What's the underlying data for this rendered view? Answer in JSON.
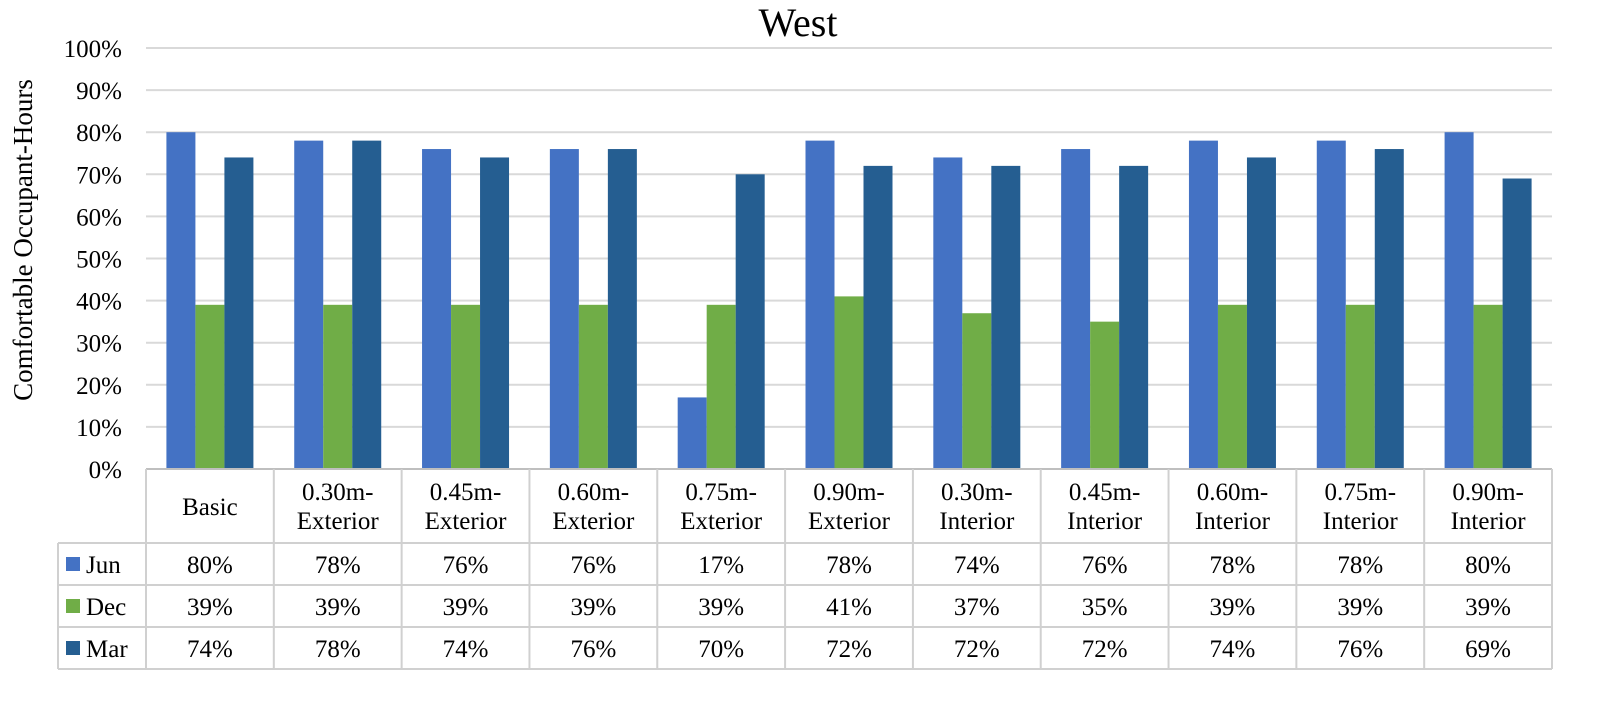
{
  "chart_data": {
    "type": "bar",
    "title": "West",
    "xlabel": "",
    "ylabel": "Comfortable Occupant-Hours",
    "ylim": [
      0,
      100
    ],
    "y_ticks": [
      "0%",
      "10%",
      "20%",
      "30%",
      "40%",
      "50%",
      "60%",
      "70%",
      "80%",
      "90%",
      "100%"
    ],
    "grid": true,
    "legend": "data-table",
    "categories": [
      [
        "Basic"
      ],
      [
        "0.30m-",
        "Exterior"
      ],
      [
        "0.45m-",
        "Exterior"
      ],
      [
        "0.60m-",
        "Exterior"
      ],
      [
        "0.75m-",
        "Exterior"
      ],
      [
        "0.90m-",
        "Exterior"
      ],
      [
        "0.30m-",
        "Interior"
      ],
      [
        "0.45m-",
        "Interior"
      ],
      [
        "0.60m-",
        "Interior"
      ],
      [
        "0.75m-",
        "Interior"
      ],
      [
        "0.90m-",
        "Interior"
      ]
    ],
    "series": [
      {
        "name": "Jun",
        "color": "#4472C4",
        "values": [
          80,
          78,
          76,
          76,
          17,
          78,
          74,
          76,
          78,
          78,
          80
        ],
        "labels": [
          "80%",
          "78%",
          "76%",
          "76%",
          "17%",
          "78%",
          "74%",
          "76%",
          "78%",
          "78%",
          "80%"
        ]
      },
      {
        "name": "Dec",
        "color": "#70AD47",
        "values": [
          39,
          39,
          39,
          39,
          39,
          41,
          37,
          35,
          39,
          39,
          39
        ],
        "labels": [
          "39%",
          "39%",
          "39%",
          "39%",
          "39%",
          "41%",
          "37%",
          "35%",
          "39%",
          "39%",
          "39%"
        ]
      },
      {
        "name": "Mar",
        "color": "#255E91",
        "values": [
          74,
          78,
          74,
          76,
          70,
          72,
          72,
          72,
          74,
          76,
          69
        ],
        "labels": [
          "74%",
          "78%",
          "74%",
          "76%",
          "70%",
          "72%",
          "72%",
          "72%",
          "74%",
          "76%",
          "69%"
        ]
      }
    ]
  }
}
